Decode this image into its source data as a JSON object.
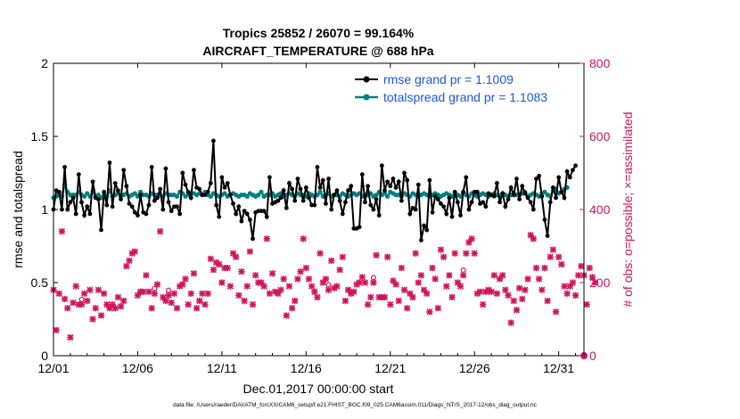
{
  "chart_data": {
    "type": "line",
    "title_line1": "Tropics 25852 / 26070 = 99.164%",
    "title_line2": "AIRCRAFT_TEMPERATURE @ 688 hPa",
    "xlabel": "Dec.01,2017 00:00:00 start",
    "ylabel_left": "rmse and totalspread",
    "ylabel_right": "# of obs: o=possible; ×=assimilated",
    "xlim": [
      0,
      31.5
    ],
    "ylim_left": [
      0,
      2
    ],
    "ylim_right": [
      0,
      800
    ],
    "x_tick_values": [
      0,
      5,
      10,
      15,
      20,
      25,
      30
    ],
    "x_tick_labels": [
      "12/01",
      "12/06",
      "12/11",
      "12/16",
      "12/21",
      "12/26",
      "12/31"
    ],
    "y_left_ticks": [
      "0",
      "0.5",
      "1",
      "1.5",
      "2"
    ],
    "y_right_ticks": [
      "0",
      "200",
      "400",
      "600",
      "800"
    ],
    "colors": {
      "rmse": "#000000",
      "spread": "#008080",
      "obs": "#d0145a",
      "legend_text": "#1a56e0"
    },
    "series": [
      {
        "name": "rmse grand pr = 1.1009",
        "values": [
          1.0,
          1.13,
          1.12,
          1.0,
          1.29,
          1.0,
          1.05,
          1.08,
          0.97,
          1.24,
          1.05,
          0.96,
          1.02,
          0.97,
          1.19,
          1.08,
          1.07,
          0.86,
          1.12,
          1.03,
          1.32,
          1.02,
          1.18,
          1.13,
          1.07,
          1.27,
          1.16,
          1.04,
          1.02,
          0.98,
          0.96,
          1.1,
          0.98,
          0.97,
          1.03,
          1.29,
          1.06,
          1.08,
          1.14,
          1.0,
          1.28,
          1.05,
          0.99,
          1.02,
          1.02,
          0.97,
          1.25,
          1.17,
          1.12,
          1.08,
          1.27,
          1.15,
          1.14,
          1.1,
          1.1,
          1.12,
          1.18,
          1.47,
          1.03,
          0.95,
          1.22,
          1.15,
          1.18,
          1.1,
          1.04,
          0.97,
          1.02,
          0.92,
          0.99,
          0.97,
          0.93,
          0.8,
          0.98,
          0.99,
          0.99,
          0.99,
          0.95,
          1.22,
          1.04,
          1.05,
          1.06,
          1.08,
          1.13,
          1.01,
          1.18,
          1.14,
          1.06,
          1.21,
          1.14,
          1.06,
          1.15,
          1.08,
          1.03,
          1.03,
          1.29,
          1.15,
          1.2,
          1.04,
          1.21,
          1.0,
          1.1,
          1.13,
          1.06,
          0.97,
          1.05,
          1.13,
          1.16,
          0.87,
          0.87,
          0.88,
          1.24,
          1.05,
          1.16,
          1.03,
          1.0,
          1.07,
          0.96,
          1.3,
          1.13,
          1.19,
          1.16,
          1.21,
          1.15,
          1.19,
          1.06,
          1.25,
          1.2,
          0.97,
          1.01,
          1.0,
          1.17,
          0.79,
          0.89,
          0.86,
          1.2,
          0.98,
          1.09,
          1.07,
          1.04,
          1.02,
          0.97,
          1.08,
          0.95,
          1.12,
          1.05,
          0.96,
          1.12,
          1.22,
          1.0,
          1.05,
          1.12,
          1.12,
          1.04,
          1.05,
          1.02,
          1.11,
          1.1,
          1.09,
          1.18,
          1.05,
          1.11,
          1.02,
          1.07,
          1.15,
          1.1,
          1.21,
          1.07,
          1.16,
          1.11,
          1.08,
          1.05,
          1.0,
          1.21,
          1.23,
          1.09,
          0.93,
          0.82,
          1.05,
          1.15,
          1.08,
          1.22,
          1.12,
          1.08,
          1.26,
          1.22,
          1.27,
          1.3
        ]
      },
      {
        "name": "totalspread grand pr = 1.1083",
        "values": [
          1.08,
          1.09,
          1.1,
          1.09,
          1.17,
          1.12,
          1.1,
          1.1,
          1.1,
          1.12,
          1.1,
          1.09,
          1.11,
          1.09,
          1.12,
          1.09,
          1.1,
          1.08,
          1.1,
          1.09,
          1.13,
          1.09,
          1.1,
          1.11,
          1.09,
          1.1,
          1.11,
          1.09,
          1.1,
          1.11,
          1.09,
          1.12,
          1.1,
          1.1,
          1.09,
          1.11,
          1.1,
          1.1,
          1.1,
          1.09,
          1.11,
          1.1,
          1.1,
          1.1,
          1.09,
          1.12,
          1.11,
          1.09,
          1.1,
          1.11,
          1.11,
          1.1,
          1.11,
          1.1,
          1.12,
          1.1,
          1.09,
          1.11,
          1.1,
          1.09,
          1.1,
          1.11,
          1.09,
          1.1,
          1.11,
          1.1,
          1.09,
          1.1,
          1.1,
          1.09,
          1.11,
          1.1,
          1.09,
          1.1,
          1.12,
          1.09,
          1.1,
          1.1,
          1.11,
          1.09,
          1.1,
          1.11,
          1.09,
          1.1,
          1.11,
          1.1,
          1.09,
          1.11,
          1.1,
          1.1,
          1.09,
          1.11,
          1.1,
          1.09,
          1.1,
          1.12,
          1.09,
          1.1,
          1.11,
          1.09,
          1.1,
          1.1,
          1.09,
          1.11,
          1.1,
          1.09,
          1.1,
          1.11,
          1.1,
          1.11,
          1.09,
          1.1,
          1.1,
          1.11,
          1.09,
          1.1,
          1.12,
          1.1,
          1.11,
          1.09,
          1.12,
          1.11,
          1.1,
          1.1,
          1.09,
          1.11,
          1.1,
          1.09,
          1.11,
          1.1,
          1.09,
          1.1,
          1.11,
          1.1,
          1.09,
          1.1,
          1.11,
          1.1,
          1.09,
          1.1,
          1.11,
          1.1,
          1.09,
          1.11,
          1.1,
          1.09,
          1.12,
          1.1,
          1.09,
          1.11,
          1.1,
          1.09,
          1.1,
          1.11,
          1.1,
          1.09,
          1.1,
          1.11,
          1.1,
          1.09,
          1.11,
          1.1,
          1.09,
          1.1,
          1.11,
          1.1,
          1.1,
          1.11,
          1.12,
          1.09,
          1.1,
          1.11,
          1.1,
          1.09,
          1.11,
          1.12,
          1.1,
          1.09,
          1.13,
          1.14,
          1.11,
          1.12,
          1.14,
          1.15
        ]
      },
      {
        "name": "# of obs assimilated",
        "values": [
          180,
          70,
          170,
          340,
          155,
          130,
          50,
          145,
          190,
          140,
          140,
          170,
          150,
          180,
          100,
          130,
          180,
          110,
          170,
          140,
          130,
          140,
          130,
          160,
          135,
          150,
          245,
          260,
          280,
          285,
          165,
          175,
          175,
          220,
          175,
          130,
          170,
          195,
          340,
          160,
          150,
          165,
          145,
          170,
          130,
          190,
          195,
          210,
          140,
          170,
          225,
          130,
          150,
          170,
          140,
          170,
          265,
          235,
          255,
          250,
          200,
          240,
          240,
          190,
          280,
          270,
          165,
          230,
          150,
          190,
          285,
          140,
          220,
          200,
          200,
          190,
          320,
          170,
          225,
          175,
          170,
          180,
          210,
          110,
          190,
          130,
          150,
          210,
          230,
          320,
          240,
          210,
          190,
          175,
          160,
          280,
          200,
          210,
          180,
          260,
          185,
          190,
          235,
          270,
          150,
          180,
          170,
          175,
          195,
          200,
          215,
          200,
          140,
          160,
          200,
          275,
          160,
          160,
          160,
          270,
          140,
          205,
          195,
          150,
          240,
          180,
          130,
          170,
          160,
          280,
          200,
          220,
          180,
          170,
          120,
          240,
          210,
          130,
          290,
          270,
          190,
          220,
          160,
          280,
          200,
          190,
          220,
          280,
          310,
          320,
          280,
          170,
          175,
          140,
          175,
          180,
          175,
          220,
          170,
          210,
          220,
          180,
          165,
          90,
          150,
          125,
          185,
          155,
          180,
          210,
          330,
          320,
          240,
          210,
          180,
          240,
          150,
          270,
          290,
          120,
          270,
          250,
          190,
          170,
          190,
          200,
          165,
          220,
          245,
          220,
          140,
          240,
          215,
          200
        ]
      }
    ]
  },
  "footnote": "data file: /Users/raeder/DAI/ATM_forcXX/CAM6_setup/f.e21.FHIST_BGC.f09_025.CAM6assim.011/Diags_NTrS_2017-12/obs_diag_output.nc"
}
